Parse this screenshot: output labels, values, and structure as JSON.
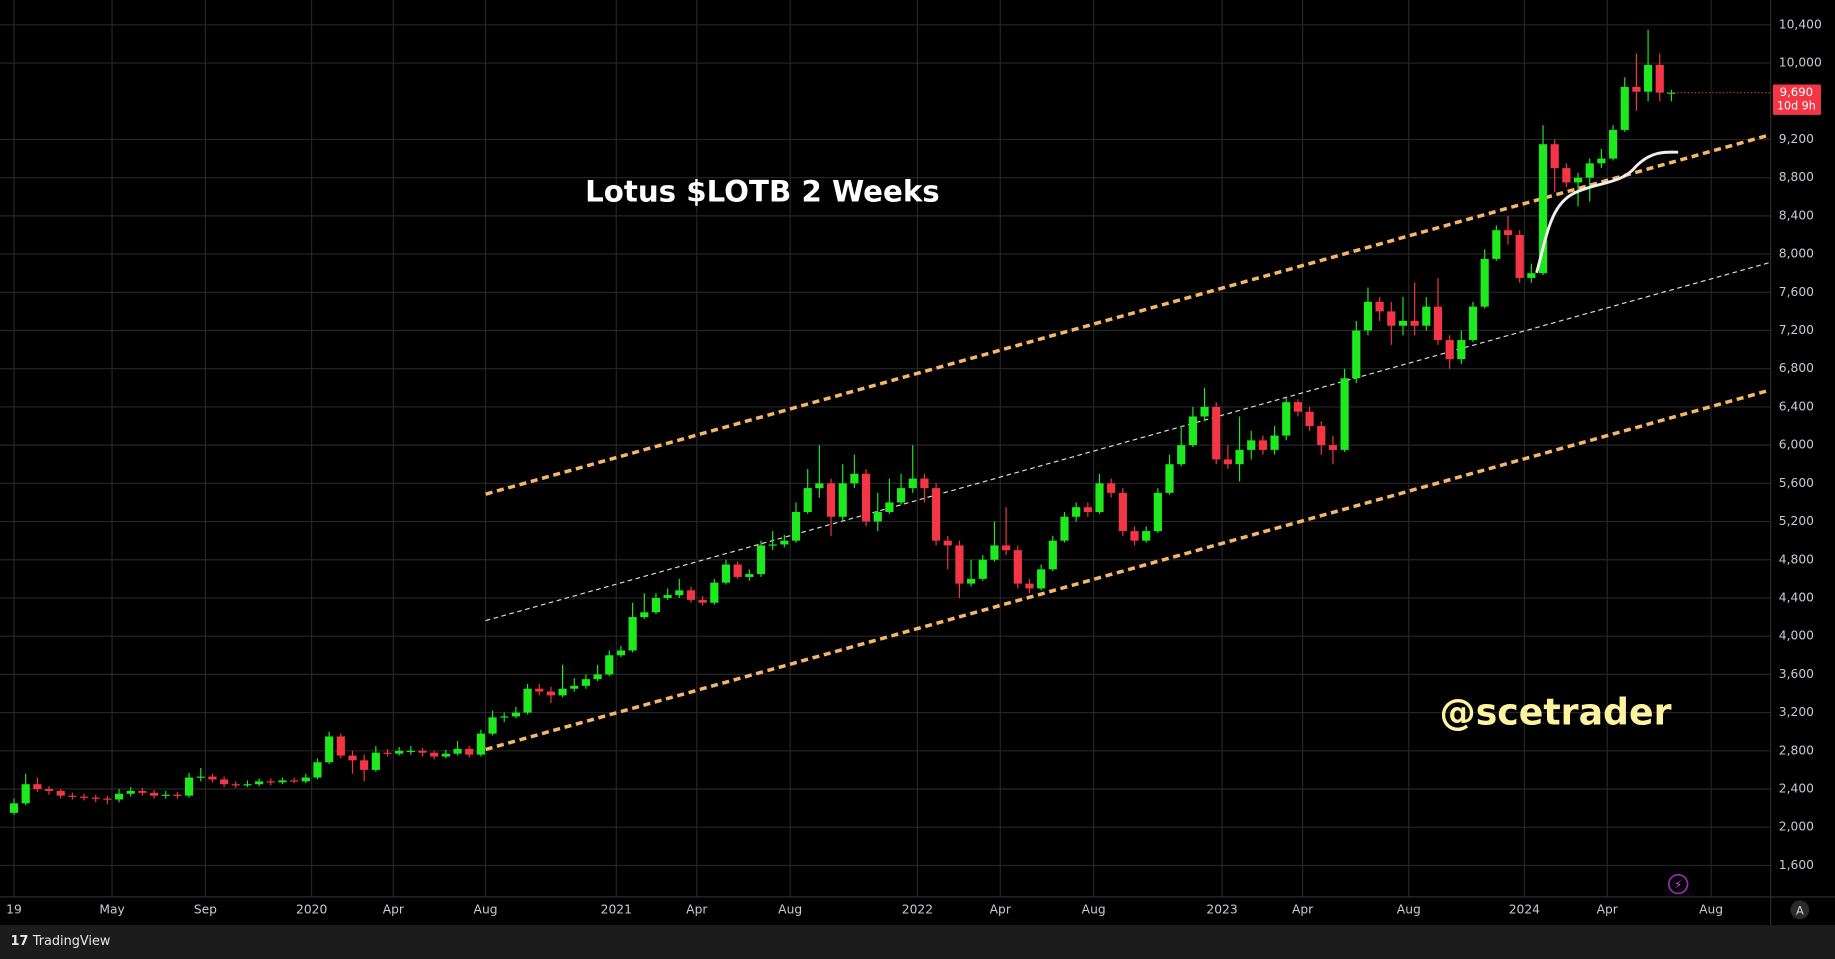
{
  "chart_data": {
    "type": "candlestick",
    "title": "Lotus $LOTB 2 Weeks",
    "watermark": "@scetrader",
    "brand": "TradingView",
    "auto_button": "A",
    "countdown": "10d 9h",
    "last_price": 9690,
    "last_price_label": "9,690",
    "up_color": "#1ee81e",
    "down_color": "#f23645",
    "grid": true,
    "xlim": [
      -1.2,
      150.5
    ],
    "ylim": [
      1270,
      10660
    ],
    "xticks": [
      {
        "value": 0,
        "label": "19"
      },
      {
        "value": 8.4,
        "label": "May"
      },
      {
        "value": 16.4,
        "label": "Sep"
      },
      {
        "value": 25.5,
        "label": "2020"
      },
      {
        "value": 32.5,
        "label": "Apr"
      },
      {
        "value": 40.4,
        "label": "Aug"
      },
      {
        "value": 51.6,
        "label": "2021"
      },
      {
        "value": 58.5,
        "label": "Apr"
      },
      {
        "value": 66.5,
        "label": "Aug"
      },
      {
        "value": 77.4,
        "label": "2022"
      },
      {
        "value": 84.5,
        "label": "Apr"
      },
      {
        "value": 92.5,
        "label": "Aug"
      },
      {
        "value": 103.5,
        "label": "2023"
      },
      {
        "value": 110.4,
        "label": "Apr"
      },
      {
        "value": 119.5,
        "label": "Aug"
      },
      {
        "value": 129.4,
        "label": "2024"
      },
      {
        "value": 136.5,
        "label": "Apr"
      },
      {
        "value": 145.4,
        "label": "Aug"
      }
    ],
    "yticks": [
      {
        "value": 1600,
        "label": "1,600"
      },
      {
        "value": 2000,
        "label": "2,000"
      },
      {
        "value": 2400,
        "label": "2,400"
      },
      {
        "value": 2800,
        "label": "2,800"
      },
      {
        "value": 3200,
        "label": "3,200"
      },
      {
        "value": 3600,
        "label": "3,600"
      },
      {
        "value": 4000,
        "label": "4,000"
      },
      {
        "value": 4400,
        "label": "4,400"
      },
      {
        "value": 4800,
        "label": "4,800"
      },
      {
        "value": 5200,
        "label": "5,200"
      },
      {
        "value": 5600,
        "label": "5,600"
      },
      {
        "value": 6000,
        "label": "6,000"
      },
      {
        "value": 6400,
        "label": "6,400"
      },
      {
        "value": 6800,
        "label": "6,800"
      },
      {
        "value": 7200,
        "label": "7,200"
      },
      {
        "value": 7600,
        "label": "7,600"
      },
      {
        "value": 8000,
        "label": "8,000"
      },
      {
        "value": 8400,
        "label": "8,400"
      },
      {
        "value": 8800,
        "label": "8,800"
      },
      {
        "value": 9200,
        "label": "9,200"
      },
      {
        "value": 10000,
        "label": "10,000"
      },
      {
        "value": 10400,
        "label": "10,400"
      }
    ],
    "open": [
      2150,
      2250,
      2450,
      2400,
      2380,
      2330,
      2320,
      2310,
      2300,
      2290,
      2350,
      2380,
      2360,
      2330,
      2340,
      2330,
      2520,
      2530,
      2500,
      2450,
      2440,
      2450,
      2480,
      2470,
      2490,
      2480,
      2520,
      2680,
      2950,
      2750,
      2700,
      2600,
      2780,
      2770,
      2800,
      2800,
      2780,
      2740,
      2770,
      2820,
      2760,
      2980,
      3150,
      3160,
      3200,
      3450,
      3420,
      3380,
      3450,
      3480,
      3550,
      3600,
      3800,
      3850,
      4200,
      4250,
      4400,
      4430,
      4480,
      4380,
      4350,
      4560,
      4750,
      4620,
      4650,
      4950,
      4960,
      5000,
      5300,
      5550,
      5600,
      5250,
      5600,
      5700,
      5200,
      5300,
      5400,
      5550,
      5650,
      5550,
      5000,
      4950,
      4550,
      4600,
      4800,
      4950,
      4900,
      4550,
      4500,
      4700,
      5000,
      5250,
      5350,
      5300,
      5600,
      5500,
      5100,
      5000,
      5100,
      5500,
      5800,
      6000,
      6300,
      6400,
      5850,
      5800,
      5950,
      6050,
      5950,
      6100,
      6450,
      6350,
      6200,
      6000,
      5950,
      6700,
      7200,
      7500,
      7400,
      7250,
      7300,
      7250,
      7450,
      7100,
      6900,
      7100,
      7450,
      7950,
      8250,
      8200,
      7750,
      7800,
      9150,
      8900,
      8750,
      8800,
      8950,
      9000,
      9300,
      9750,
      9700,
      9980,
      9690
    ],
    "high": [
      2300,
      2560,
      2520,
      2430,
      2400,
      2360,
      2350,
      2340,
      2330,
      2400,
      2420,
      2410,
      2390,
      2380,
      2370,
      2570,
      2620,
      2560,
      2530,
      2480,
      2490,
      2510,
      2510,
      2520,
      2520,
      2560,
      2720,
      3000,
      2980,
      2800,
      2760,
      2850,
      2820,
      2840,
      2850,
      2830,
      2800,
      2810,
      2900,
      2850,
      3020,
      3220,
      3200,
      3260,
      3500,
      3500,
      3470,
      3700,
      3560,
      3600,
      3700,
      3850,
      3900,
      4350,
      4450,
      4450,
      4500,
      4600,
      4520,
      4420,
      4600,
      4800,
      4780,
      4700,
      5000,
      5100,
      5060,
      5400,
      5750,
      6000,
      5650,
      5800,
      5900,
      5750,
      5500,
      5650,
      5700,
      6000,
      5700,
      5600,
      5050,
      5000,
      4800,
      4850,
      5200,
      5350,
      4950,
      4600,
      4750,
      5050,
      5300,
      5400,
      5400,
      5700,
      5650,
      5550,
      5150,
      5150,
      5550,
      5900,
      6200,
      6400,
      6600,
      6450,
      6000,
      6300,
      6150,
      6100,
      6200,
      6500,
      6480,
      6400,
      6250,
      6100,
      6800,
      7300,
      7650,
      7550,
      7500,
      7550,
      7700,
      7550,
      7750,
      7150,
      7200,
      7500,
      8050,
      8300,
      8400,
      8250,
      7900,
      9350,
      9200,
      8950,
      8850,
      9000,
      9100,
      9350,
      9850,
      10100,
      10350,
      10100,
      9720
    ],
    "low": [
      2130,
      2230,
      2370,
      2340,
      2300,
      2290,
      2280,
      2260,
      2240,
      2260,
      2320,
      2330,
      2300,
      2300,
      2300,
      2310,
      2480,
      2470,
      2420,
      2410,
      2420,
      2430,
      2440,
      2450,
      2460,
      2460,
      2500,
      2660,
      2720,
      2560,
      2480,
      2580,
      2740,
      2750,
      2760,
      2740,
      2710,
      2720,
      2750,
      2730,
      2740,
      2960,
      3100,
      3140,
      3180,
      3380,
      3300,
      3360,
      3420,
      3450,
      3530,
      3580,
      3780,
      3830,
      4180,
      4230,
      4380,
      4400,
      4350,
      4320,
      4330,
      4540,
      4600,
      4580,
      4620,
      4900,
      4930,
      4980,
      5280,
      5450,
      5050,
      5200,
      5550,
      5150,
      5100,
      5280,
      5380,
      5500,
      5400,
      4950,
      4700,
      4400,
      4520,
      4580,
      4780,
      4850,
      4500,
      4450,
      4480,
      4680,
      4980,
      5200,
      5250,
      5280,
      5450,
      5050,
      4950,
      4980,
      5080,
      5480,
      5780,
      5980,
      6250,
      5800,
      5750,
      5620,
      5850,
      5900,
      5900,
      6050,
      6300,
      6150,
      5900,
      5800,
      5930,
      6650,
      7150,
      7300,
      7050,
      7150,
      7150,
      7200,
      7050,
      6800,
      6850,
      7080,
      7430,
      7930,
      8100,
      7700,
      7700,
      7780,
      8650,
      8700,
      8500,
      8550,
      8900,
      8980,
      9280,
      9500,
      9600,
      9600,
      9600
    ],
    "close": [
      2250,
      2450,
      2400,
      2380,
      2330,
      2320,
      2310,
      2300,
      2290,
      2350,
      2380,
      2360,
      2330,
      2340,
      2330,
      2520,
      2530,
      2500,
      2450,
      2440,
      2450,
      2480,
      2470,
      2490,
      2480,
      2520,
      2680,
      2950,
      2750,
      2700,
      2600,
      2780,
      2770,
      2800,
      2800,
      2780,
      2740,
      2770,
      2820,
      2760,
      2980,
      3150,
      3160,
      3200,
      3450,
      3420,
      3380,
      3450,
      3480,
      3550,
      3600,
      3800,
      3850,
      4200,
      4250,
      4400,
      4430,
      4480,
      4380,
      4350,
      4560,
      4750,
      4620,
      4650,
      4950,
      4960,
      5000,
      5300,
      5550,
      5600,
      5250,
      5600,
      5700,
      5200,
      5300,
      5400,
      5550,
      5650,
      5550,
      5000,
      4950,
      4550,
      4600,
      4800,
      4950,
      4900,
      4550,
      4500,
      4700,
      5000,
      5250,
      5350,
      5300,
      5600,
      5500,
      5100,
      5000,
      5100,
      5500,
      5800,
      6000,
      6300,
      6400,
      5850,
      5800,
      5950,
      6050,
      5950,
      6100,
      6450,
      6350,
      6200,
      6000,
      5950,
      6700,
      7200,
      7500,
      7400,
      7250,
      7300,
      7250,
      7450,
      7100,
      6900,
      7100,
      7450,
      7950,
      8250,
      8200,
      7750,
      7800,
      9150,
      8900,
      8750,
      8800,
      8950,
      9000,
      9300,
      9750,
      9700,
      9980,
      9690,
      9690
    ]
  }
}
